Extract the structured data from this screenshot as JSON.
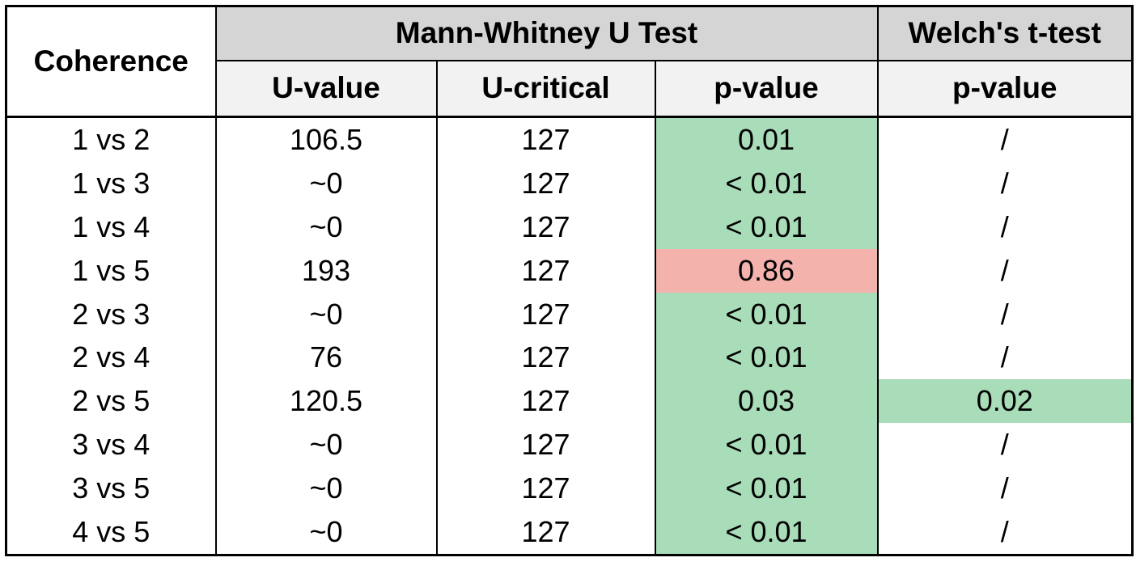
{
  "table": {
    "corner_header": "Coherence",
    "group_headers": [
      "Mann-Whitney U Test",
      "Welch's t-test"
    ],
    "sub_headers": [
      "U-value",
      "U-critical",
      "p-value",
      "p-value"
    ],
    "rows": [
      {
        "coherence": "1 vs 2",
        "u_value": "106.5",
        "u_critical": "127",
        "mw_p": "0.01",
        "mw_p_bg": "green",
        "welch_p": "/",
        "welch_p_bg": null
      },
      {
        "coherence": "1 vs 3",
        "u_value": "~0",
        "u_critical": "127",
        "mw_p": "< 0.01",
        "mw_p_bg": "green",
        "welch_p": "/",
        "welch_p_bg": null
      },
      {
        "coherence": "1 vs 4",
        "u_value": "~0",
        "u_critical": "127",
        "mw_p": "< 0.01",
        "mw_p_bg": "green",
        "welch_p": "/",
        "welch_p_bg": null
      },
      {
        "coherence": "1 vs 5",
        "u_value": "193",
        "u_critical": "127",
        "mw_p": "0.86",
        "mw_p_bg": "red",
        "welch_p": "/",
        "welch_p_bg": null
      },
      {
        "coherence": "2 vs 3",
        "u_value": "~0",
        "u_critical": "127",
        "mw_p": "< 0.01",
        "mw_p_bg": "green",
        "welch_p": "/",
        "welch_p_bg": null
      },
      {
        "coherence": "2 vs 4",
        "u_value": "76",
        "u_critical": "127",
        "mw_p": "< 0.01",
        "mw_p_bg": "green",
        "welch_p": "/",
        "welch_p_bg": null
      },
      {
        "coherence": "2 vs 5",
        "u_value": "120.5",
        "u_critical": "127",
        "mw_p": "0.03",
        "mw_p_bg": "green",
        "welch_p": "0.02",
        "welch_p_bg": "green"
      },
      {
        "coherence": "3 vs 4",
        "u_value": "~0",
        "u_critical": "127",
        "mw_p": "< 0.01",
        "mw_p_bg": "green",
        "welch_p": "/",
        "welch_p_bg": null
      },
      {
        "coherence": "3 vs 5",
        "u_value": "~0",
        "u_critical": "127",
        "mw_p": "< 0.01",
        "mw_p_bg": "green",
        "welch_p": "/",
        "welch_p_bg": null
      },
      {
        "coherence": "4 vs 5",
        "u_value": "~0",
        "u_critical": "127",
        "mw_p": "< 0.01",
        "mw_p_bg": "green",
        "welch_p": "/",
        "welch_p_bg": null
      }
    ],
    "colors": {
      "green": "#a9dcb8",
      "red": "#f4b2ac",
      "group_header_bg": "#d5d5d5",
      "sub_header_bg": "#f2f2f2",
      "border": "#000000"
    }
  },
  "chart_data": {
    "type": "table",
    "columns": [
      "Coherence",
      "Mann-Whitney U Test / U-value",
      "Mann-Whitney U Test / U-critical",
      "Mann-Whitney U Test / p-value",
      "Welch's t-test / p-value"
    ],
    "rows": [
      [
        "1 vs 2",
        "106.5",
        "127",
        "0.01",
        "/"
      ],
      [
        "1 vs 3",
        "~0",
        "127",
        "< 0.01",
        "/"
      ],
      [
        "1 vs 4",
        "~0",
        "127",
        "< 0.01",
        "/"
      ],
      [
        "1 vs 5",
        "193",
        "127",
        "0.86",
        "/"
      ],
      [
        "2 vs 3",
        "~0",
        "127",
        "< 0.01",
        "/"
      ],
      [
        "2 vs 4",
        "76",
        "127",
        "< 0.01",
        "/"
      ],
      [
        "2 vs 5",
        "120.5",
        "127",
        "0.03",
        "0.02"
      ],
      [
        "3 vs 4",
        "~0",
        "127",
        "< 0.01",
        "/"
      ],
      [
        "3 vs 5",
        "~0",
        "127",
        "< 0.01",
        "/"
      ],
      [
        "4 vs 5",
        "~0",
        "127",
        "< 0.01",
        "/"
      ]
    ],
    "cell_highlights": {
      "mann_whitney_p_value": [
        "green",
        "green",
        "green",
        "red",
        "green",
        "green",
        "green",
        "green",
        "green",
        "green"
      ],
      "welch_p_value": [
        null,
        null,
        null,
        null,
        null,
        null,
        "green",
        null,
        null,
        null
      ]
    },
    "layout": {
      "significant_color": "#a9dcb8",
      "not_significant_color": "#f4b2ac",
      "header_fill": "#d5d5d5",
      "subheader_fill": "#f2f2f2"
    }
  }
}
